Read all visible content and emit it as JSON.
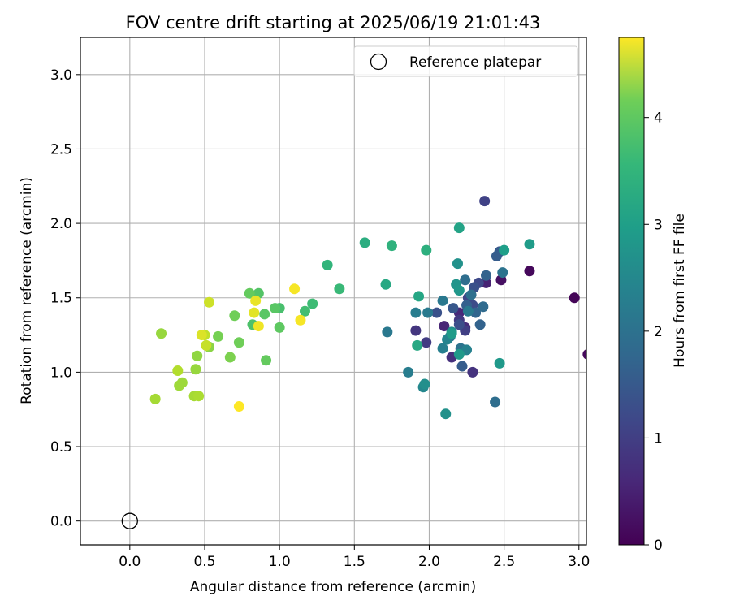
{
  "chart_data": {
    "type": "scatter",
    "title": "FOV centre drift starting at 2025/06/19 21:01:43",
    "xlabel": "Angular distance from reference (arcmin)",
    "ylabel": "Rotation from reference (arcmin)",
    "xlim": [
      -0.33,
      3.05
    ],
    "ylim": [
      -0.16,
      3.25
    ],
    "xticks": [
      "0.0",
      "0.5",
      "1.0",
      "1.5",
      "2.0",
      "2.5",
      "3.0"
    ],
    "xtick_values": [
      0,
      0.5,
      1.0,
      1.5,
      2.0,
      2.5,
      3.0
    ],
    "yticks": [
      "0.0",
      "0.5",
      "1.0",
      "1.5",
      "2.0",
      "2.5",
      "3.0"
    ],
    "ytick_values": [
      0,
      0.5,
      1.0,
      1.5,
      2.0,
      2.5,
      3.0
    ],
    "grid": true,
    "legend": {
      "position": "top-right",
      "entries": [
        "Reference platepar"
      ]
    },
    "reference_point": {
      "x": 0.0,
      "y": 0.0
    },
    "colorbar": {
      "label": "Hours from first FF file",
      "colormap": "viridis",
      "range": [
        0,
        4.75
      ],
      "ticks": [
        "0",
        "1",
        "2",
        "3",
        "4"
      ],
      "tick_values": [
        0,
        1,
        2,
        3,
        4
      ]
    },
    "points": [
      {
        "x": 2.97,
        "y": 1.5,
        "c": 0.05
      },
      {
        "x": 3.06,
        "y": 1.12,
        "c": 0.1
      },
      {
        "x": 2.67,
        "y": 1.68,
        "c": 0.1
      },
      {
        "x": 2.48,
        "y": 1.62,
        "c": 0.2
      },
      {
        "x": 2.38,
        "y": 1.6,
        "c": 0.45
      },
      {
        "x": 2.2,
        "y": 1.4,
        "c": 0.55
      },
      {
        "x": 2.22,
        "y": 1.15,
        "c": 0.4
      },
      {
        "x": 2.24,
        "y": 1.3,
        "c": 0.6
      },
      {
        "x": 2.15,
        "y": 1.1,
        "c": 0.65
      },
      {
        "x": 2.29,
        "y": 1.0,
        "c": 0.7
      },
      {
        "x": 1.91,
        "y": 1.28,
        "c": 0.75
      },
      {
        "x": 2.1,
        "y": 1.31,
        "c": 0.5
      },
      {
        "x": 2.2,
        "y": 1.35,
        "c": 0.8
      },
      {
        "x": 2.37,
        "y": 2.15,
        "c": 0.95
      },
      {
        "x": 1.98,
        "y": 1.2,
        "c": 0.85
      },
      {
        "x": 2.24,
        "y": 1.28,
        "c": 0.9
      },
      {
        "x": 2.26,
        "y": 1.5,
        "c": 1.0
      },
      {
        "x": 2.33,
        "y": 1.6,
        "c": 1.05
      },
      {
        "x": 2.29,
        "y": 1.45,
        "c": 1.1
      },
      {
        "x": 2.2,
        "y": 1.32,
        "c": 1.15
      },
      {
        "x": 2.05,
        "y": 1.4,
        "c": 1.2
      },
      {
        "x": 2.16,
        "y": 1.43,
        "c": 1.3
      },
      {
        "x": 2.3,
        "y": 1.57,
        "c": 1.2
      },
      {
        "x": 2.47,
        "y": 1.81,
        "c": 1.35
      },
      {
        "x": 2.45,
        "y": 1.78,
        "c": 1.4
      },
      {
        "x": 2.38,
        "y": 1.65,
        "c": 1.5
      },
      {
        "x": 2.25,
        "y": 1.45,
        "c": 1.45
      },
      {
        "x": 2.31,
        "y": 1.4,
        "c": 1.55
      },
      {
        "x": 2.34,
        "y": 1.32,
        "c": 1.5
      },
      {
        "x": 2.22,
        "y": 1.04,
        "c": 1.4
      },
      {
        "x": 2.44,
        "y": 0.8,
        "c": 1.7
      },
      {
        "x": 2.36,
        "y": 1.44,
        "c": 1.65
      },
      {
        "x": 2.24,
        "y": 1.62,
        "c": 1.7
      },
      {
        "x": 2.28,
        "y": 1.52,
        "c": 1.75
      },
      {
        "x": 2.49,
        "y": 1.67,
        "c": 1.8
      },
      {
        "x": 2.21,
        "y": 1.16,
        "c": 1.8
      },
      {
        "x": 2.14,
        "y": 1.24,
        "c": 1.85
      },
      {
        "x": 1.72,
        "y": 1.27,
        "c": 1.9
      },
      {
        "x": 2.09,
        "y": 1.48,
        "c": 1.9
      },
      {
        "x": 2.26,
        "y": 1.41,
        "c": 1.95
      },
      {
        "x": 1.99,
        "y": 1.4,
        "c": 1.95
      },
      {
        "x": 1.91,
        "y": 1.4,
        "c": 2.0
      },
      {
        "x": 1.86,
        "y": 1.0,
        "c": 2.0
      },
      {
        "x": 2.25,
        "y": 1.15,
        "c": 2.1
      },
      {
        "x": 2.09,
        "y": 1.16,
        "c": 2.05
      },
      {
        "x": 2.12,
        "y": 1.22,
        "c": 2.15
      },
      {
        "x": 1.96,
        "y": 0.9,
        "c": 2.2
      },
      {
        "x": 2.15,
        "y": 1.27,
        "c": 2.3
      },
      {
        "x": 1.97,
        "y": 0.92,
        "c": 2.35
      },
      {
        "x": 2.11,
        "y": 0.72,
        "c": 2.4
      },
      {
        "x": 2.19,
        "y": 1.73,
        "c": 2.4
      },
      {
        "x": 2.18,
        "y": 1.59,
        "c": 2.45
      },
      {
        "x": 2.2,
        "y": 1.55,
        "c": 2.5
      },
      {
        "x": 2.2,
        "y": 1.12,
        "c": 2.55
      },
      {
        "x": 2.47,
        "y": 1.06,
        "c": 2.55
      },
      {
        "x": 2.15,
        "y": 1.26,
        "c": 2.6
      },
      {
        "x": 2.67,
        "y": 1.86,
        "c": 2.6
      },
      {
        "x": 2.5,
        "y": 1.82,
        "c": 2.65
      },
      {
        "x": 2.2,
        "y": 1.97,
        "c": 2.75
      },
      {
        "x": 1.93,
        "y": 1.51,
        "c": 2.8
      },
      {
        "x": 1.71,
        "y": 1.59,
        "c": 2.85
      },
      {
        "x": 1.92,
        "y": 1.18,
        "c": 2.85
      },
      {
        "x": 1.57,
        "y": 1.87,
        "c": 2.95
      },
      {
        "x": 1.98,
        "y": 1.82,
        "c": 3.0
      },
      {
        "x": 1.75,
        "y": 1.85,
        "c": 3.05
      },
      {
        "x": 1.32,
        "y": 1.72,
        "c": 3.1
      },
      {
        "x": 1.4,
        "y": 1.56,
        "c": 3.2
      },
      {
        "x": 1.22,
        "y": 1.46,
        "c": 3.25
      },
      {
        "x": 1.17,
        "y": 1.41,
        "c": 3.3
      },
      {
        "x": 1.0,
        "y": 1.43,
        "c": 3.35
      },
      {
        "x": 0.82,
        "y": 1.32,
        "c": 3.4
      },
      {
        "x": 0.86,
        "y": 1.53,
        "c": 3.45
      },
      {
        "x": 0.97,
        "y": 1.43,
        "c": 3.5
      },
      {
        "x": 0.9,
        "y": 1.39,
        "c": 3.5
      },
      {
        "x": 1.0,
        "y": 1.3,
        "c": 3.55
      },
      {
        "x": 0.8,
        "y": 1.53,
        "c": 3.6
      },
      {
        "x": 0.91,
        "y": 1.08,
        "c": 3.6
      },
      {
        "x": 0.7,
        "y": 1.38,
        "c": 3.7
      },
      {
        "x": 0.73,
        "y": 1.2,
        "c": 3.7
      },
      {
        "x": 0.59,
        "y": 1.24,
        "c": 3.75
      },
      {
        "x": 0.67,
        "y": 1.1,
        "c": 3.8
      },
      {
        "x": 0.53,
        "y": 1.17,
        "c": 3.9
      },
      {
        "x": 0.45,
        "y": 1.11,
        "c": 3.95
      },
      {
        "x": 0.21,
        "y": 1.26,
        "c": 4.0
      },
      {
        "x": 0.44,
        "y": 1.02,
        "c": 4.0
      },
      {
        "x": 0.35,
        "y": 0.93,
        "c": 4.05
      },
      {
        "x": 0.33,
        "y": 0.91,
        "c": 4.05
      },
      {
        "x": 0.17,
        "y": 0.82,
        "c": 4.1
      },
      {
        "x": 0.43,
        "y": 0.84,
        "c": 4.1
      },
      {
        "x": 0.46,
        "y": 0.84,
        "c": 4.15
      },
      {
        "x": 0.32,
        "y": 1.01,
        "c": 4.2
      },
      {
        "x": 0.5,
        "y": 1.25,
        "c": 4.3
      },
      {
        "x": 0.51,
        "y": 1.18,
        "c": 4.35
      },
      {
        "x": 0.53,
        "y": 1.47,
        "c": 4.4
      },
      {
        "x": 0.48,
        "y": 1.25,
        "c": 4.5
      },
      {
        "x": 0.83,
        "y": 1.4,
        "c": 4.55
      },
      {
        "x": 0.84,
        "y": 1.48,
        "c": 4.6
      },
      {
        "x": 0.86,
        "y": 1.31,
        "c": 4.65
      },
      {
        "x": 1.1,
        "y": 1.56,
        "c": 4.7
      },
      {
        "x": 1.14,
        "y": 1.35,
        "c": 4.7
      },
      {
        "x": 0.73,
        "y": 0.77,
        "c": 4.75
      }
    ]
  }
}
